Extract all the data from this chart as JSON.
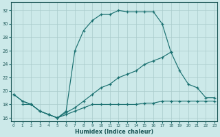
{
  "xlabel": "Humidex (Indice chaleur)",
  "bg_color": "#cce9e9",
  "grid_color": "#aacccc",
  "line_color": "#1a7070",
  "xlim": [
    -0.3,
    23.3
  ],
  "ylim": [
    15.5,
    33.2
  ],
  "xticks": [
    0,
    1,
    2,
    3,
    4,
    5,
    6,
    7,
    8,
    9,
    10,
    11,
    12,
    13,
    14,
    15,
    16,
    17,
    18,
    19,
    20,
    21,
    22,
    23
  ],
  "yticks": [
    16,
    18,
    20,
    22,
    24,
    26,
    28,
    30,
    32
  ],
  "lineA_x": [
    0,
    1,
    2,
    3,
    4,
    5,
    6,
    7,
    8,
    9,
    10,
    11,
    12,
    13,
    14,
    15,
    16,
    17,
    18
  ],
  "lineA_y": [
    19.5,
    18.5,
    18,
    17,
    16.5,
    16,
    17,
    26,
    29,
    30.5,
    31.4,
    31.4,
    32,
    31.8,
    31.8,
    31.8,
    31.8,
    30,
    25.8
  ],
  "lineB_x": [
    0,
    1,
    2,
    3,
    4,
    5,
    6,
    7,
    8,
    9,
    10,
    11,
    12,
    13,
    14,
    15,
    16,
    17,
    18,
    19,
    20,
    21,
    22,
    23
  ],
  "lineB_y": [
    19.5,
    18.5,
    18,
    17,
    16.5,
    16,
    16.8,
    17.5,
    18.5,
    19.5,
    20.5,
    21,
    22,
    22.5,
    23,
    24,
    24.5,
    25,
    25.8,
    23,
    21,
    20.5,
    19,
    19
  ],
  "lineC_x": [
    1,
    2,
    3,
    4,
    5,
    6,
    7,
    8,
    9,
    10,
    11,
    12,
    13,
    14,
    15,
    16,
    17,
    18,
    19,
    20,
    21,
    22,
    23
  ],
  "lineC_y": [
    18,
    18,
    17,
    16.5,
    16,
    16.5,
    17,
    17.5,
    18,
    18,
    18,
    18,
    18,
    18,
    18.2,
    18.2,
    18.5,
    18.5,
    18.5,
    18.5,
    18.5,
    18.5,
    18.5
  ]
}
